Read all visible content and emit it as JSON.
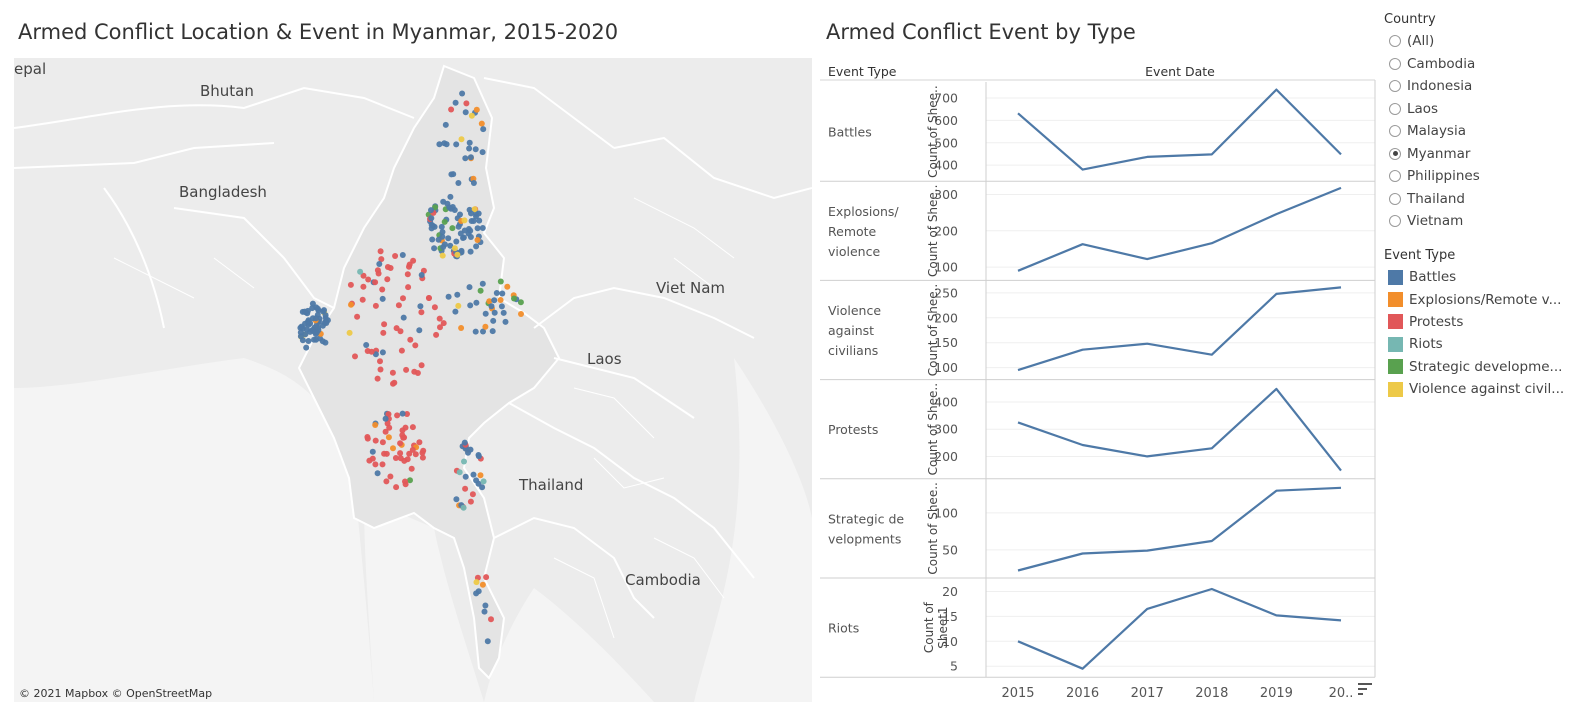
{
  "map": {
    "title": "Armed Conflict Location & Event in Myanmar, 2015-2020",
    "attribution": "© 2021 Mapbox  © OpenStreetMap",
    "labels": [
      "epal",
      "Bhutan",
      "Bangladesh",
      "Viet Nam",
      "Laos",
      "Thailand",
      "Cambodia"
    ]
  },
  "chart": {
    "title": "Armed Conflict Event by Type",
    "col_header_left": "Event Type",
    "col_header_center": "Event Date"
  },
  "filter": {
    "title": "Country",
    "options": [
      "(All)",
      "Cambodia",
      "Indonesia",
      "Laos",
      "Malaysia",
      "Myanmar",
      "Philippines",
      "Thailand",
      "Vietnam"
    ],
    "selected": "Myanmar"
  },
  "legend": {
    "title": "Event Type",
    "items": [
      {
        "label": "Battles",
        "color": "#4e79a7"
      },
      {
        "label": "Explosions/Remote v...",
        "color": "#f28e2b"
      },
      {
        "label": "Protests",
        "color": "#e15759"
      },
      {
        "label": "Riots",
        "color": "#76b7b2"
      },
      {
        "label": "Strategic developme...",
        "color": "#59a14f"
      },
      {
        "label": "Violence against civil...",
        "color": "#edc948"
      }
    ]
  },
  "chart_data": {
    "type": "line",
    "title": "Armed Conflict Event by Type",
    "xlabel": "Event Date",
    "x": [
      "2015",
      "2016",
      "2017",
      "2018",
      "2019",
      "20.."
    ],
    "panels": [
      {
        "row_label": [
          "Battles"
        ],
        "ylabel": [
          "Count of Shee.."
        ],
        "yticks": [
          400,
          500,
          600,
          700
        ],
        "ylim": [
          355,
          745
        ],
        "values": [
          632,
          380,
          437,
          448,
          738,
          448
        ]
      },
      {
        "row_label": [
          "Explosions/",
          "Remote",
          "violence"
        ],
        "ylabel": [
          "Count of Shee.."
        ],
        "yticks": [
          100,
          200,
          300
        ],
        "ylim": [
          80,
          320
        ],
        "values": [
          90,
          163,
          122,
          166,
          246,
          318
        ]
      },
      {
        "row_label": [
          "Violence",
          "against",
          "civilians"
        ],
        "ylabel": [
          "Count of Shee.."
        ],
        "yticks": [
          100,
          150,
          200,
          250
        ],
        "ylim": [
          88,
          263
        ],
        "values": [
          95,
          136,
          148,
          126,
          248,
          261
        ]
      },
      {
        "row_label": [
          "Protests"
        ],
        "ylabel": [
          "Count of Shee.."
        ],
        "yticks": [
          200,
          300,
          400
        ],
        "ylim": [
          140,
          460
        ],
        "values": [
          325,
          242,
          200,
          230,
          448,
          148
        ]
      },
      {
        "row_label": [
          "Strategic de",
          "velopments"
        ],
        "ylabel": [
          "Count of Shee.."
        ],
        "yticks": [
          50,
          100
        ],
        "ylim": [
          20,
          138
        ],
        "values": [
          22,
          45,
          49,
          62,
          130,
          134
        ]
      },
      {
        "row_label": [
          "Riots"
        ],
        "ylabel": [
          "Count of",
          "Sheet1"
        ],
        "yticks": [
          5,
          10,
          15,
          20
        ],
        "ylim": [
          4,
          21.5
        ],
        "values": [
          10,
          4.5,
          16.5,
          20.5,
          15.2,
          14.2
        ]
      }
    ],
    "line_color": "#4e79a7",
    "grid": true
  }
}
